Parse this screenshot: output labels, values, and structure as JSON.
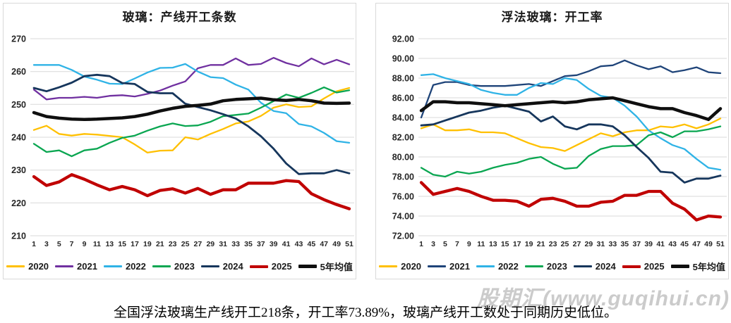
{
  "page": {
    "background": "#ffffff",
    "caption": "全国浮法玻璃生产线开工218条，开工率73.89%，玻璃产线开工数处于同期历史低位。",
    "watermark": "股期汇(www.guqihui.cn)"
  },
  "colors": {
    "grid": "#D9D9D9",
    "y2020": "#FFC000",
    "y2021_left": "#7030A0",
    "y2021_right": "#1F4479",
    "y2022": "#2FB3E6",
    "y2023": "#0AA651",
    "y2024": "#16365C",
    "y2025": "#C00000",
    "avg5": "#0F0F0F"
  },
  "chart_data": [
    {
      "type": "line",
      "title": "玻璃：产线开工条数",
      "x": [
        1,
        3,
        5,
        7,
        9,
        11,
        13,
        15,
        17,
        19,
        21,
        23,
        25,
        27,
        29,
        31,
        33,
        35,
        37,
        39,
        41,
        43,
        45,
        47,
        49,
        51
      ],
      "xlabel": "",
      "ylabel": "",
      "ylim": [
        210,
        270
      ],
      "ytick_step": 10,
      "ytick_decimals": 0,
      "grid": true,
      "legend_position": "bottom",
      "series": [
        {
          "name": "2020",
          "key": "y2020",
          "color": "#FFC000",
          "width": 2.3,
          "values": [
            242.2,
            243.5,
            241,
            240.5,
            241,
            240.8,
            240.4,
            240,
            237.8,
            235.3,
            235.9,
            236,
            240,
            239.3,
            241,
            242.5,
            244.2,
            244.8,
            246.5,
            249,
            250,
            249.2,
            249.4,
            251.8,
            254,
            255
          ]
        },
        {
          "name": "2021",
          "key": "y2021",
          "color": "#7030A0",
          "width": 2.3,
          "values": [
            254.5,
            251.5,
            252,
            252,
            252.3,
            252,
            252.6,
            252.8,
            252.4,
            253.2,
            254.2,
            255.7,
            257,
            261,
            262,
            262,
            264,
            262,
            262.3,
            264.2,
            262.6,
            261.6,
            264,
            262.2,
            263.6,
            262.2
          ]
        },
        {
          "name": "2022",
          "key": "y2022",
          "color": "#2FB3E6",
          "width": 2.3,
          "values": [
            262,
            262,
            262,
            260.5,
            258.5,
            257.5,
            256.3,
            256.2,
            257.9,
            259.7,
            261.1,
            261.2,
            262.3,
            260,
            258.3,
            258,
            256,
            254.5,
            250.5,
            248,
            247.3,
            244,
            243.3,
            241.3,
            238.8,
            238.3
          ]
        },
        {
          "name": "2023",
          "key": "y2023",
          "color": "#0AA651",
          "width": 2.3,
          "values": [
            238,
            235.5,
            236,
            234.2,
            236,
            236.5,
            238.3,
            239.8,
            240.5,
            242,
            243.3,
            244.2,
            243.4,
            243.6,
            244.7,
            246.4,
            246.8,
            247.2,
            249,
            251,
            253,
            252,
            253.5,
            255.2,
            253.6,
            254.3
          ]
        },
        {
          "name": "2024",
          "key": "y2024",
          "color": "#16365C",
          "width": 2.8,
          "values": [
            255,
            254,
            255.2,
            256.6,
            258.6,
            259,
            258.6,
            256.5,
            256.2,
            253.8,
            253.4,
            253.4,
            250.2,
            249.2,
            248.2,
            247,
            245.7,
            243.3,
            240.3,
            236.5,
            232,
            228.8,
            229,
            229,
            230,
            229
          ]
        },
        {
          "name": "2025",
          "key": "y2025",
          "color": "#C00000",
          "width": 4.3,
          "values": [
            228,
            225.3,
            226.4,
            228.6,
            227.2,
            225.5,
            224,
            225,
            224,
            222.2,
            223.8,
            224.3,
            223,
            224.4,
            222.6,
            224,
            224,
            226,
            226,
            226,
            226.8,
            226.5,
            222.8,
            221,
            219.5,
            218.2
          ]
        },
        {
          "name": "5年均值",
          "key": "avg5",
          "color": "#0F0F0F",
          "width": 4.5,
          "values": [
            247.5,
            246.3,
            245.8,
            245.5,
            245.4,
            245.5,
            245.7,
            245.9,
            246.3,
            247,
            248,
            248.8,
            249.4,
            249.7,
            250.1,
            251.1,
            251.5,
            251.7,
            251.9,
            251.4,
            251.2,
            251.5,
            251.1,
            250.4,
            250.3,
            250.4
          ]
        }
      ]
    },
    {
      "type": "line",
      "title": "浮法玻璃：开工率",
      "x": [
        1,
        3,
        5,
        7,
        9,
        11,
        13,
        15,
        17,
        19,
        21,
        23,
        25,
        27,
        29,
        31,
        33,
        35,
        37,
        39,
        41,
        43,
        45,
        47,
        49,
        51
      ],
      "xlabel": "",
      "ylabel": "",
      "ylim": [
        72,
        92
      ],
      "ytick_step": 2,
      "ytick_decimals": 2,
      "grid": true,
      "legend_position": "bottom",
      "series": [
        {
          "name": "2020",
          "key": "y2020",
          "color": "#FFC000",
          "width": 2.3,
          "values": [
            82.9,
            83.3,
            82.7,
            82.7,
            82.8,
            82.5,
            82.5,
            82.4,
            81.9,
            81.4,
            81.0,
            80.9,
            80.6,
            81.2,
            81.8,
            82.4,
            82.1,
            82.5,
            82.7,
            82.7,
            83.1,
            83.0,
            83.3,
            82.9,
            83.3,
            83.9
          ]
        },
        {
          "name": "2021",
          "key": "y2021",
          "color": "#1F4479",
          "width": 2.3,
          "values": [
            84.0,
            87.3,
            87.6,
            87.6,
            87.3,
            87.2,
            87.2,
            87.2,
            87.3,
            87.4,
            87.2,
            87.7,
            88.2,
            88.3,
            88.7,
            89.2,
            89.3,
            89.8,
            89.3,
            88.9,
            89.2,
            88.6,
            88.8,
            89.1,
            88.6,
            88.5
          ]
        },
        {
          "name": "2022",
          "key": "y2022",
          "color": "#2FB3E6",
          "width": 2.3,
          "values": [
            88.3,
            88.4,
            88.0,
            87.7,
            87.4,
            86.8,
            86.5,
            86.3,
            86.3,
            87.0,
            87.5,
            87.4,
            88.0,
            87.8,
            86.9,
            86.2,
            86.0,
            85.2,
            84.1,
            82.7,
            81.9,
            81.2,
            80.8,
            79.8,
            78.9,
            78.7
          ]
        },
        {
          "name": "2023",
          "key": "y2023",
          "color": "#0AA651",
          "width": 2.3,
          "values": [
            78.9,
            78.2,
            78.0,
            78.5,
            78.3,
            78.5,
            78.9,
            79.2,
            79.4,
            79.8,
            80.0,
            79.3,
            78.8,
            78.9,
            80.1,
            80.8,
            81.1,
            81.1,
            81.2,
            82.2,
            82.5,
            82.0,
            82.6,
            82.6,
            82.8,
            83.1
          ]
        },
        {
          "name": "2024",
          "key": "y2024",
          "color": "#16365C",
          "width": 2.8,
          "values": [
            83.2,
            83.3,
            83.7,
            84.1,
            84.5,
            84.7,
            85.0,
            85.2,
            84.9,
            84.6,
            83.6,
            84.1,
            83.1,
            82.8,
            83.3,
            83.3,
            83.1,
            82.2,
            81.0,
            79.9,
            78.5,
            78.4,
            77.4,
            77.8,
            77.8,
            78.1
          ]
        },
        {
          "name": "2025",
          "key": "y2025",
          "color": "#C00000",
          "width": 4.3,
          "values": [
            77.4,
            76.2,
            76.5,
            76.8,
            76.5,
            76.0,
            75.6,
            75.6,
            75.5,
            75.0,
            75.7,
            75.8,
            75.5,
            75.0,
            75.0,
            75.4,
            75.5,
            76.1,
            76.1,
            76.5,
            76.5,
            75.3,
            74.7,
            73.6,
            74.0,
            73.9
          ]
        },
        {
          "name": "5年均值",
          "key": "avg5",
          "color": "#0F0F0F",
          "width": 4.5,
          "values": [
            84.7,
            85.6,
            85.6,
            85.5,
            85.5,
            85.4,
            85.3,
            85.2,
            85.3,
            85.4,
            85.5,
            85.6,
            85.5,
            85.6,
            85.8,
            85.9,
            86.0,
            85.7,
            85.4,
            85.1,
            84.9,
            84.9,
            84.5,
            84.2,
            83.8,
            84.9
          ]
        }
      ]
    }
  ]
}
